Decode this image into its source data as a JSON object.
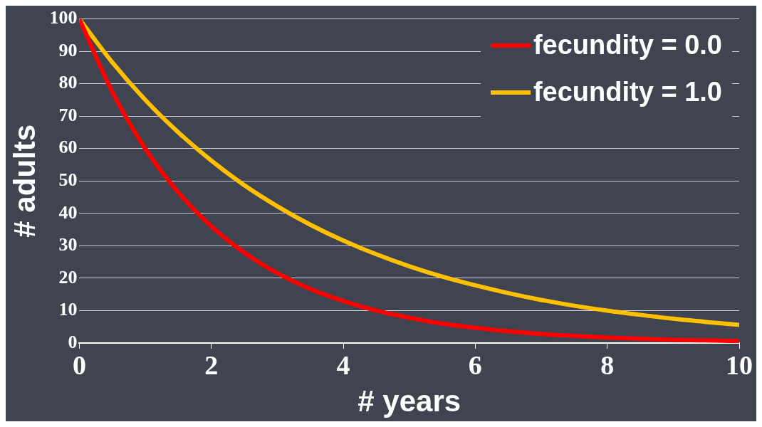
{
  "chart_data": {
    "type": "line",
    "xlabel": "# years",
    "ylabel": "# adults",
    "x": [
      0,
      0.5,
      1,
      1.5,
      2,
      2.5,
      3,
      3.5,
      4,
      4.5,
      5,
      5.5,
      6,
      6.5,
      7,
      7.5,
      8,
      8.5,
      9,
      9.5,
      10
    ],
    "series": [
      {
        "name": "fecundity = 0.0",
        "color": "#ff0000",
        "values": [
          100,
          77.5,
          60,
          46.5,
          36,
          27.9,
          21.6,
          16.7,
          13,
          10,
          7.8,
          6,
          4.7,
          3.6,
          2.8,
          2.2,
          1.7,
          1.3,
          1,
          0.8,
          0.6
        ]
      },
      {
        "name": "fecundity = 1.0",
        "color": "#ffc000",
        "values": [
          100,
          86.6,
          75,
          65,
          56.3,
          48.7,
          42.2,
          36.5,
          31.6,
          27.4,
          23.7,
          20.5,
          17.8,
          15.4,
          13.3,
          11.5,
          10,
          8.7,
          7.5,
          6.5,
          5.6
        ]
      }
    ],
    "xlim": [
      0,
      10
    ],
    "xticks": [
      0,
      2,
      4,
      6,
      8,
      10
    ],
    "ylim": [
      0,
      100
    ],
    "yticks": [
      0,
      10,
      20,
      30,
      40,
      50,
      60,
      70,
      80,
      90,
      100
    ],
    "grid": "y",
    "legend": "top right",
    "marker": "none",
    "line_style": "solid"
  }
}
